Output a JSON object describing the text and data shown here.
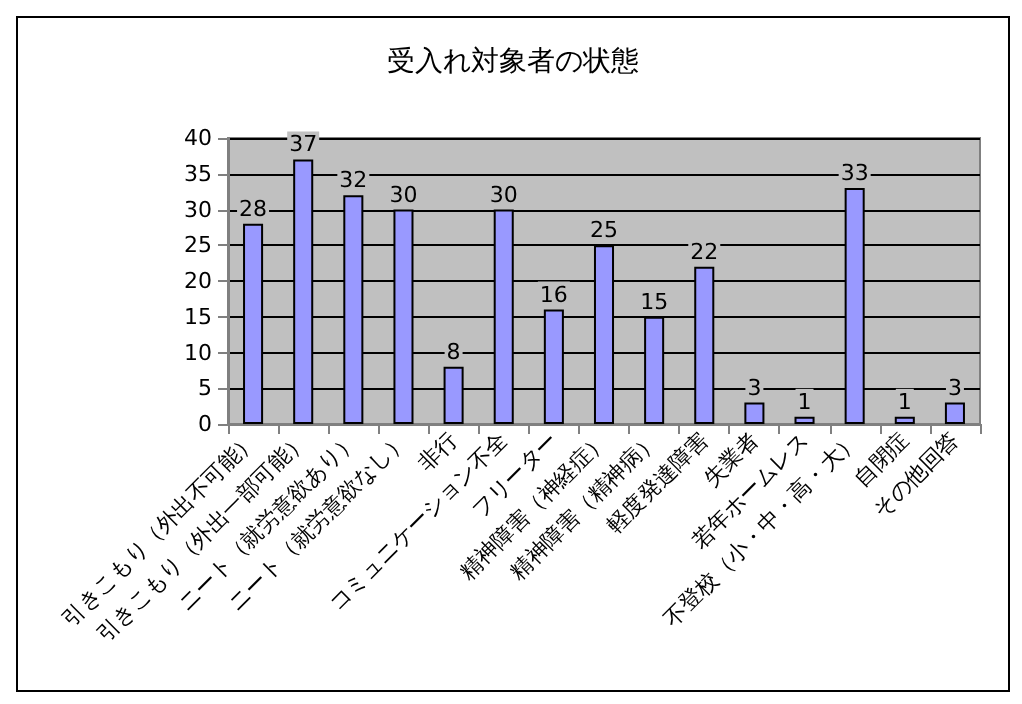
{
  "chart_data": {
    "type": "bar",
    "title": "受入れ対象者の状態",
    "categories": [
      "引きこもり（外出不可能）",
      "引きこもり（外出一部可能）",
      "ニート（就労意欲あり）",
      "ニート（就労意欲なし）",
      "非行",
      "コミュニケーション不全",
      "フリーター",
      "精神障害（神経症）",
      "精神障害（精神病）",
      "軽度発達障害",
      "失業者",
      "若年ホームレス",
      "不登校（小・中・高・大）",
      "自閉症",
      "その他回答"
    ],
    "values": [
      28,
      37,
      32,
      30,
      8,
      30,
      16,
      25,
      15,
      22,
      3,
      1,
      33,
      1,
      3
    ],
    "color": "#9999ff",
    "ylim": [
      0,
      40
    ],
    "yticks": [
      0,
      5,
      10,
      15,
      20,
      25,
      30,
      35,
      40
    ],
    "grid": "y",
    "data_labels": true
  }
}
